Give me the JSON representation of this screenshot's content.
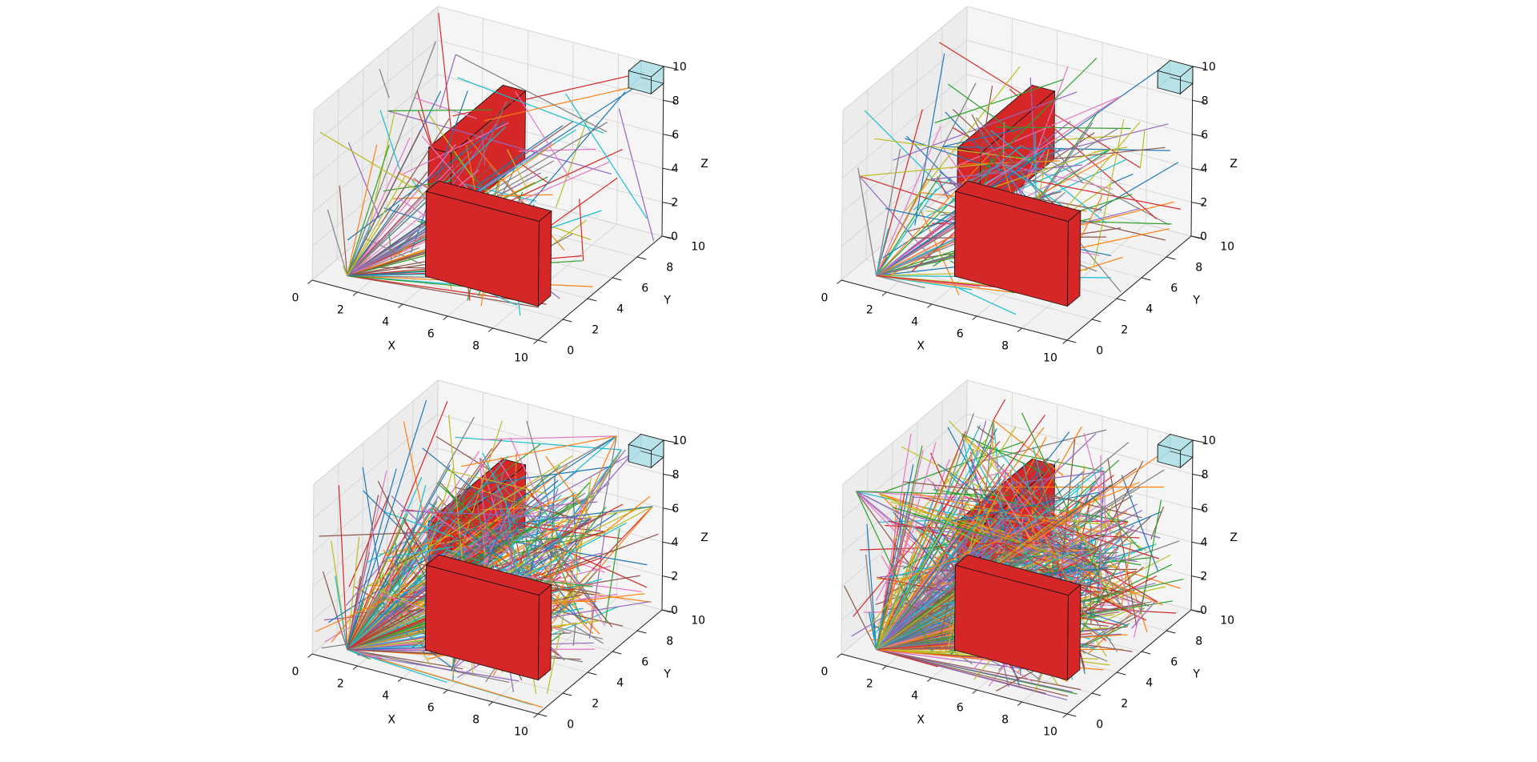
{
  "figure": {
    "grid": true
  },
  "chart_data": [
    {
      "type": "3d-line",
      "panel": "top-left",
      "xlabel": "X",
      "ylabel": "Y",
      "zlabel": "Z",
      "xlim": [
        0,
        10
      ],
      "ylim": [
        0,
        10
      ],
      "zlim": [
        0,
        10
      ],
      "xticks": [
        "0",
        "2",
        "4",
        "6",
        "8",
        "10"
      ],
      "yticks": [
        "0",
        "2",
        "4",
        "6",
        "8",
        "10"
      ],
      "zticks": [
        "0",
        "2",
        "4",
        "6",
        "8",
        "10"
      ],
      "boxes": [
        {
          "role": "obstacle",
          "color": "#d62728",
          "x": [
            4,
            5
          ],
          "y": [
            2,
            8
          ],
          "z": [
            4,
            8
          ]
        },
        {
          "role": "obstacle",
          "color": "#d62728",
          "x": [
            5,
            10
          ],
          "y": [
            0,
            1
          ],
          "z": [
            2,
            7
          ]
        },
        {
          "role": "goal",
          "color": "#b0e0e6",
          "x": [
            9,
            10
          ],
          "y": [
            9,
            10
          ],
          "z": [
            9,
            10
          ]
        }
      ],
      "segments": 150,
      "hub": [
        1,
        1,
        0
      ]
    },
    {
      "type": "3d-line",
      "panel": "top-right",
      "xlabel": "X",
      "ylabel": "Y",
      "zlabel": "Z",
      "xlim": [
        0,
        10
      ],
      "ylim": [
        0,
        10
      ],
      "zlim": [
        0,
        10
      ],
      "xticks": [
        "0",
        "2",
        "4",
        "6",
        "8",
        "10"
      ],
      "yticks": [
        "0",
        "2",
        "4",
        "6",
        "8",
        "10"
      ],
      "zticks": [
        "0",
        "2",
        "4",
        "6",
        "8",
        "10"
      ],
      "boxes": [
        {
          "role": "obstacle",
          "color": "#d62728",
          "x": [
            4,
            5
          ],
          "y": [
            2,
            8
          ],
          "z": [
            4,
            8
          ]
        },
        {
          "role": "obstacle",
          "color": "#d62728",
          "x": [
            5,
            10
          ],
          "y": [
            0,
            1
          ],
          "z": [
            2,
            7
          ]
        },
        {
          "role": "goal",
          "color": "#b0e0e6",
          "x": [
            9,
            10
          ],
          "y": [
            9,
            10
          ],
          "z": [
            9,
            10
          ]
        }
      ],
      "segments": 150,
      "hub": [
        1,
        1,
        0
      ]
    },
    {
      "type": "3d-line",
      "panel": "bottom-left",
      "xlabel": "X",
      "ylabel": "Y",
      "zlabel": "Z",
      "xlim": [
        0,
        10
      ],
      "ylim": [
        0,
        10
      ],
      "zlim": [
        0,
        10
      ],
      "xticks": [
        "0",
        "2",
        "4",
        "6",
        "8",
        "10"
      ],
      "yticks": [
        "0",
        "2",
        "4",
        "6",
        "8",
        "10"
      ],
      "zticks": [
        "0",
        "2",
        "4",
        "6",
        "8",
        "10"
      ],
      "boxes": [
        {
          "role": "obstacle",
          "color": "#d62728",
          "x": [
            4,
            5
          ],
          "y": [
            2,
            8
          ],
          "z": [
            4,
            8
          ]
        },
        {
          "role": "obstacle",
          "color": "#d62728",
          "x": [
            5,
            10
          ],
          "y": [
            0,
            1
          ],
          "z": [
            2,
            7
          ]
        },
        {
          "role": "goal",
          "color": "#b0e0e6",
          "x": [
            9,
            10
          ],
          "y": [
            9,
            10
          ],
          "z": [
            9,
            10
          ]
        }
      ],
      "segments": 420,
      "hub": [
        1,
        1,
        0
      ]
    },
    {
      "type": "3d-line",
      "panel": "bottom-right",
      "xlabel": "X",
      "ylabel": "Y",
      "zlabel": "Z",
      "xlim": [
        0,
        10
      ],
      "ylim": [
        0,
        10
      ],
      "zlim": [
        0,
        10
      ],
      "xticks": [
        "0",
        "2",
        "4",
        "6",
        "8",
        "10"
      ],
      "yticks": [
        "0",
        "2",
        "4",
        "6",
        "8",
        "10"
      ],
      "zticks": [
        "0",
        "2",
        "4",
        "6",
        "8",
        "10"
      ],
      "boxes": [
        {
          "role": "obstacle",
          "color": "#d62728",
          "x": [
            4,
            5
          ],
          "y": [
            2,
            8
          ],
          "z": [
            4,
            8
          ]
        },
        {
          "role": "obstacle",
          "color": "#d62728",
          "x": [
            5,
            10
          ],
          "y": [
            0,
            1
          ],
          "z": [
            2,
            7
          ]
        },
        {
          "role": "goal",
          "color": "#b0e0e6",
          "x": [
            9,
            10
          ],
          "y": [
            9,
            10
          ],
          "z": [
            9,
            10
          ]
        }
      ],
      "segments": 650,
      "hub": [
        1,
        1,
        0
      ]
    }
  ],
  "palette": [
    "#1f77b4",
    "#ff7f0e",
    "#2ca02c",
    "#d62728",
    "#9467bd",
    "#8c564b",
    "#e377c2",
    "#7f7f7f",
    "#bcbd22",
    "#17becf"
  ]
}
